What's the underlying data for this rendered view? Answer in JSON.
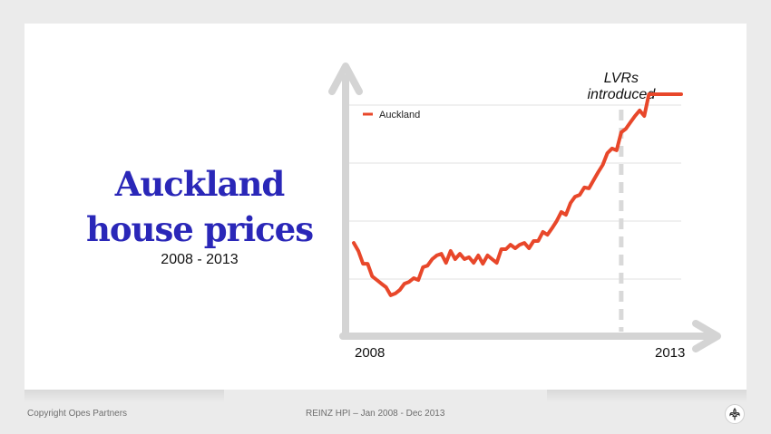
{
  "slide": {
    "title_line1": "Auckland",
    "title_line2": "house prices",
    "subtitle": "2008 - 2013"
  },
  "footer": {
    "copyright": "Copyright Opes Partners",
    "source": "REINZ HPI – Jan 2008 - Dec 2013"
  },
  "colors": {
    "title": "#2a27b8",
    "series": "#e8472a",
    "axis": "#d4d4d4",
    "grid": "#e2e2e2"
  },
  "chart_data": {
    "type": "line",
    "title": "",
    "xlabel": "",
    "ylabel": "",
    "x_tick_labels": [
      "2008",
      "2013"
    ],
    "xlim": [
      2008.0,
      2013.917
    ],
    "ylim": [
      0,
      100
    ],
    "grid": true,
    "legend_position": "top-left",
    "series": [
      {
        "name": "Auckland",
        "x": [
          2008.0,
          2008.083,
          2008.167,
          2008.25,
          2008.333,
          2008.417,
          2008.5,
          2008.583,
          2008.667,
          2008.75,
          2008.833,
          2008.917,
          2009.0,
          2009.083,
          2009.167,
          2009.25,
          2009.333,
          2009.417,
          2009.5,
          2009.583,
          2009.667,
          2009.75,
          2009.833,
          2009.917,
          2010.0,
          2010.083,
          2010.167,
          2010.25,
          2010.333,
          2010.417,
          2010.5,
          2010.583,
          2010.667,
          2010.75,
          2010.833,
          2010.917,
          2011.0,
          2011.083,
          2011.167,
          2011.25,
          2011.333,
          2011.417,
          2011.5,
          2011.583,
          2011.667,
          2011.75,
          2011.833,
          2011.917,
          2012.0,
          2012.083,
          2012.167,
          2012.25,
          2012.333,
          2012.417,
          2012.5,
          2012.583,
          2012.667,
          2012.75,
          2012.833,
          2012.917,
          2013.0,
          2013.083,
          2013.167,
          2013.25,
          2013.333,
          2013.417,
          2013.5,
          2013.583,
          2013.667,
          2013.75,
          2013.833,
          2013.917
        ],
        "values": [
          40.6,
          37.1,
          31.6,
          31.6,
          26.2,
          24.6,
          23.0,
          21.5,
          18.0,
          18.8,
          20.3,
          23.0,
          23.8,
          25.4,
          24.6,
          30.1,
          30.8,
          33.6,
          35.2,
          35.9,
          32.0,
          37.1,
          33.6,
          35.9,
          33.6,
          34.4,
          32.0,
          35.2,
          31.6,
          35.2,
          33.6,
          32.0,
          37.9,
          37.9,
          39.8,
          38.3,
          39.8,
          40.6,
          38.3,
          41.4,
          41.4,
          45.3,
          44.1,
          46.9,
          50.0,
          53.9,
          52.7,
          57.8,
          60.5,
          61.3,
          64.5,
          64.1,
          67.6,
          71.1,
          74.2,
          79.3,
          81.3,
          80.5,
          88.3,
          89.8,
          92.6,
          95.3,
          97.7,
          95.3,
          104.7,
          104.7,
          104.7,
          104.7,
          104.7,
          104.7,
          104.7,
          104.7
        ]
      }
    ],
    "annotations": [
      {
        "text_line1": "LVRs",
        "text_line2": "introduced",
        "x": 2012.833,
        "style": "dashed-vertical-line"
      }
    ]
  }
}
